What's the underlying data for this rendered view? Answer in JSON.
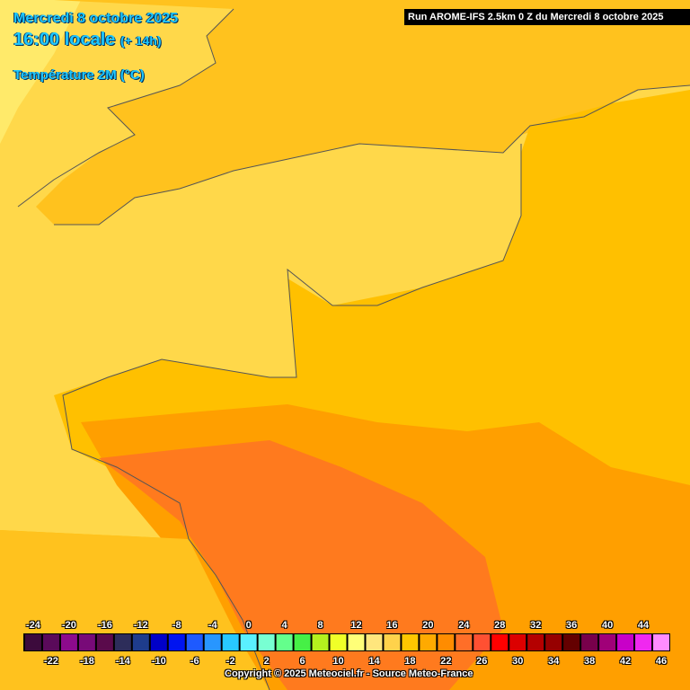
{
  "header": {
    "date": "Mercredi 8 octobre 2025",
    "time": "16:00 locale",
    "offset": "(+ 14h)",
    "variable": "Température 2M (°C)",
    "run": "Run AROME-IFS 2.5km 0 Z du Mercredi 8 octobre 2025"
  },
  "legend": {
    "values": [
      -24,
      -22,
      -20,
      -18,
      -16,
      -14,
      -12,
      -10,
      -8,
      -6,
      -4,
      -2,
      0,
      2,
      4,
      6,
      8,
      10,
      12,
      14,
      16,
      18,
      20,
      22,
      24,
      26,
      28,
      30,
      32,
      34,
      36,
      38,
      40,
      42,
      44,
      46
    ],
    "colors": [
      "#3c0a3c",
      "#5a0a5a",
      "#8c0a8c",
      "#780a78",
      "#5a0a4b",
      "#2d2d5a",
      "#1e3c8c",
      "#0000c8",
      "#0014f0",
      "#1e5aff",
      "#2896ff",
      "#28c8ff",
      "#5af0ff",
      "#78ffd2",
      "#64ff8c",
      "#46f046",
      "#b4f01e",
      "#f0ff28",
      "#ffff78",
      "#ffe67d",
      "#ffd24b",
      "#ffc800",
      "#ffaa00",
      "#ff8c00",
      "#ff6e28",
      "#ff5032",
      "#ff0000",
      "#dc0000",
      "#b40000",
      "#960000",
      "#640000",
      "#78004b",
      "#a00078",
      "#c800c8",
      "#f028f0",
      "#ff8cff"
    ]
  },
  "footer": {
    "copyright": "Copyright © 2025 Meteociel.fr - Source Meteo-France"
  }
}
